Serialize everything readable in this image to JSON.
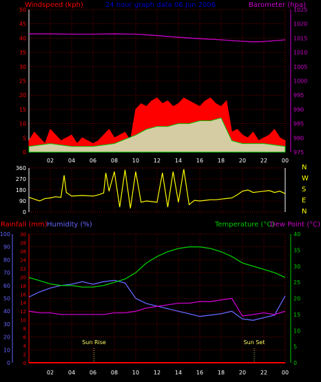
{
  "colors": {
    "background": "#000000",
    "grid": "#cc0000",
    "axis": "#ffffff",
    "wind_gust": "#ff0000",
    "wind_avg": "#00cc00",
    "wind_min": "#ccffcc",
    "barometer": "#cc00cc",
    "direction": "#ffff00",
    "rainfall": "#ff0000",
    "humidity": "#6666ff",
    "temperature": "#00cc00",
    "dewpoint": "#cc00cc",
    "title": "#0000cc",
    "sun_marker": "#ffff66"
  },
  "header": {
    "left_label": "Windspeed (kph)",
    "title": "24 hour graph data 06 Jun 2006",
    "right_label": "Barometer (hpa)"
  },
  "middle": {
    "compass": [
      "N",
      "W",
      "S",
      "E",
      "N"
    ]
  },
  "bottom_header": {
    "rain_label": "Rainfall (mm)",
    "humidity_label": "Humidity (%)",
    "temp_label": "Temperature (°C)",
    "dew_label": "Dew Point (°C)"
  },
  "annotations": {
    "sunrise": "Sun Rise",
    "sunset": "Sun Set"
  },
  "chart_data": [
    {
      "type": "line",
      "title": "24 hour graph data 06 Jun 2006",
      "x_tick_labels": [
        "02",
        "04",
        "06",
        "08",
        "10",
        "12",
        "14",
        "16",
        "18",
        "20",
        "22",
        "00"
      ],
      "xlim": [
        0,
        24
      ],
      "left_axis": {
        "label": "Windspeed (kph)",
        "ylim": [
          0,
          50
        ],
        "ticks": [
          0,
          5,
          10,
          15,
          20,
          25,
          30,
          35,
          40,
          45,
          50
        ]
      },
      "right_axis": {
        "label": "Barometer (hpa)",
        "ylim": [
          975,
          1025
        ],
        "ticks": [
          975,
          980,
          985,
          990,
          995,
          1000,
          1005,
          1010,
          1015,
          1020,
          1025
        ]
      },
      "series": [
        {
          "name": "Windspeed gust",
          "axis": "left",
          "x": [
            0,
            0.5,
            1,
            1.5,
            2,
            2.5,
            3,
            3.5,
            4,
            4.5,
            5,
            5.5,
            6,
            6.5,
            7,
            7.5,
            8,
            8.5,
            9,
            9.5,
            10,
            10.5,
            11,
            11.5,
            12,
            12.5,
            13,
            13.5,
            14,
            14.5,
            15,
            15.5,
            16,
            16.5,
            17,
            17.5,
            18,
            18.5,
            19,
            19.5,
            20,
            20.5,
            21,
            21.5,
            22,
            22.5,
            23,
            23.5,
            24
          ],
          "values": [
            4,
            7,
            5,
            3,
            8,
            6,
            4,
            5,
            6,
            3,
            5,
            4,
            3,
            4,
            6,
            8,
            5,
            6,
            7,
            4,
            15,
            17,
            16,
            18,
            19,
            17,
            18,
            16,
            17,
            19,
            18,
            17,
            16,
            18,
            19,
            17,
            16,
            18,
            7,
            8,
            6,
            5,
            7,
            4,
            5,
            6,
            8,
            5,
            4
          ]
        },
        {
          "name": "Windspeed average",
          "axis": "left",
          "x": [
            0,
            2,
            4,
            6,
            8,
            10,
            11,
            12,
            13,
            14,
            15,
            16,
            17,
            18,
            19,
            20,
            22,
            24
          ],
          "values": [
            2,
            3,
            2,
            2,
            3,
            6,
            8,
            9,
            9,
            10,
            10,
            11,
            11,
            12,
            4,
            3,
            3,
            2
          ]
        },
        {
          "name": "Barometer",
          "axis": "right",
          "x": [
            0,
            2,
            4,
            6,
            8,
            10,
            12,
            14,
            16,
            18,
            20,
            21,
            22,
            24
          ],
          "values": [
            1016.5,
            1016.5,
            1016.4,
            1016.4,
            1016.5,
            1016.4,
            1015.9,
            1015.3,
            1014.8,
            1014.4,
            1013.9,
            1013.7,
            1013.8,
            1014.4
          ]
        }
      ]
    },
    {
      "type": "line",
      "title": "Wind direction",
      "left_axis": {
        "ylim": [
          0,
          360
        ],
        "ticks": [
          0,
          90,
          180,
          270,
          360
        ]
      },
      "xlim": [
        0,
        24
      ],
      "series": [
        {
          "name": "Wind direction",
          "x": [
            0,
            0.5,
            1,
            1.5,
            2,
            2.5,
            3,
            3.3,
            3.5,
            4,
            5,
            6,
            6.5,
            7,
            7.2,
            7.5,
            8,
            8.5,
            9,
            9.5,
            10,
            10.5,
            11,
            11.5,
            12,
            12.5,
            13,
            13.5,
            14,
            14.5,
            15,
            15.5,
            16,
            16.5,
            17,
            17.5,
            18,
            18.5,
            19,
            19.5,
            20,
            20.5,
            21,
            21.5,
            22,
            22.5,
            23,
            23.5,
            24
          ],
          "values": [
            120,
            105,
            90,
            110,
            115,
            125,
            120,
            300,
            160,
            130,
            135,
            130,
            140,
            155,
            320,
            170,
            330,
            40,
            345,
            30,
            330,
            80,
            90,
            85,
            80,
            320,
            40,
            330,
            80,
            350,
            60,
            95,
            90,
            95,
            100,
            100,
            105,
            110,
            115,
            140,
            170,
            180,
            160,
            165,
            170,
            175,
            160,
            170,
            150
          ]
        }
      ]
    },
    {
      "type": "line",
      "title": "Rainfall, Humidity, Temperature, Dew Point",
      "xlim": [
        0,
        24
      ],
      "x_tick_labels": [
        "02",
        "04",
        "06",
        "08",
        "10",
        "12",
        "14",
        "16",
        "18",
        "20",
        "22",
        "00"
      ],
      "humidity_axis": {
        "label": "Humidity (%)",
        "ylim": [
          0,
          100
        ],
        "ticks": [
          0,
          10,
          20,
          30,
          40,
          50,
          60,
          70,
          80,
          90,
          100
        ]
      },
      "rain_axis": {
        "label": "Rainfall (mm)",
        "ylim": [
          0,
          30
        ],
        "ticks": [
          0,
          2,
          4,
          6,
          8,
          10,
          12,
          14,
          16,
          18,
          20,
          22,
          24,
          26,
          28,
          30
        ]
      },
      "temp_axis": {
        "label": "Temperature (°C)",
        "ylim": [
          0,
          40
        ],
        "ticks": [
          0,
          5,
          10,
          15,
          20,
          25,
          30,
          35,
          40
        ]
      },
      "series": [
        {
          "name": "Rainfall (mm)",
          "axis": "rain",
          "x": [
            0,
            24
          ],
          "values": [
            0,
            0
          ]
        },
        {
          "name": "Humidity (%)",
          "axis": "humidity",
          "x": [
            0,
            1,
            2,
            3,
            4,
            5,
            6,
            7,
            8,
            9,
            10,
            11,
            12,
            13,
            14,
            15,
            16,
            17,
            18,
            19,
            20,
            21,
            22,
            23,
            24
          ],
          "values": [
            51,
            55,
            58,
            60,
            61,
            63,
            61,
            63,
            64,
            62,
            50,
            46,
            44,
            42,
            40,
            38,
            36,
            37,
            38,
            40,
            34,
            33,
            35,
            37,
            52
          ]
        },
        {
          "name": "Temperature (°C)",
          "axis": "temp",
          "x": [
            0,
            1,
            2,
            3,
            4,
            5,
            6,
            7,
            8,
            9,
            10,
            11,
            12,
            13,
            14,
            15,
            16,
            17,
            18,
            19,
            20,
            21,
            22,
            23,
            24
          ],
          "values": [
            26.5,
            25.5,
            24.5,
            24,
            24,
            23.5,
            23.5,
            24,
            25,
            26,
            28,
            31,
            33,
            34.5,
            35.5,
            36,
            36,
            35.5,
            34.5,
            33,
            31,
            30,
            29,
            28,
            26.5
          ]
        },
        {
          "name": "Dew Point (°C)",
          "axis": "temp",
          "x": [
            0,
            1,
            2,
            3,
            4,
            5,
            6,
            7,
            8,
            9,
            10,
            11,
            12,
            13,
            14,
            15,
            16,
            17,
            18,
            19,
            20,
            21,
            22,
            23,
            24
          ],
          "values": [
            16,
            15.5,
            15.5,
            15,
            15,
            15,
            15,
            15,
            15.5,
            15.5,
            16,
            17,
            17.5,
            18,
            18.5,
            18.5,
            19,
            19,
            19.5,
            20,
            14.5,
            15,
            15.5,
            15,
            16
          ]
        }
      ],
      "annotations": [
        {
          "label": "Sun Rise",
          "x": 6.1
        },
        {
          "label": "Sun Set",
          "x": 21.1
        }
      ]
    }
  ]
}
